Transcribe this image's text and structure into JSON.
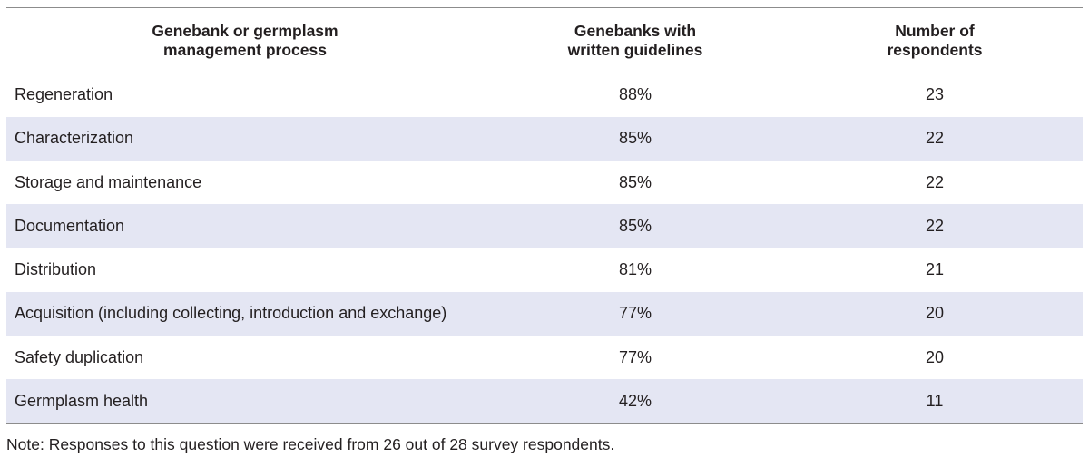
{
  "table": {
    "headers": {
      "process": [
        "Genebank or germplasm",
        "management process"
      ],
      "guidelines": [
        "Genebanks with",
        "written guidelines"
      ],
      "respondents": [
        "Number of",
        "respondents"
      ]
    },
    "rows": [
      {
        "process": "Regeneration",
        "guidelines": "88%",
        "respondents": "23"
      },
      {
        "process": "Characterization",
        "guidelines": "85%",
        "respondents": "22"
      },
      {
        "process": "Storage and maintenance",
        "guidelines": "85%",
        "respondents": "22"
      },
      {
        "process": "Documentation",
        "guidelines": "85%",
        "respondents": "22"
      },
      {
        "process": "Distribution",
        "guidelines": "81%",
        "respondents": "21"
      },
      {
        "process": "Acquisition (including collecting, introduction and exchange)",
        "guidelines": "77%",
        "respondents": "20"
      },
      {
        "process": "Safety duplication",
        "guidelines": "77%",
        "respondents": "20"
      },
      {
        "process": "Germplasm health",
        "guidelines": "42%",
        "respondents": "11"
      }
    ],
    "row_shading": "#e4e6f3"
  },
  "note": "Note: Responses to this question were received from 26 out of 28 survey respondents."
}
